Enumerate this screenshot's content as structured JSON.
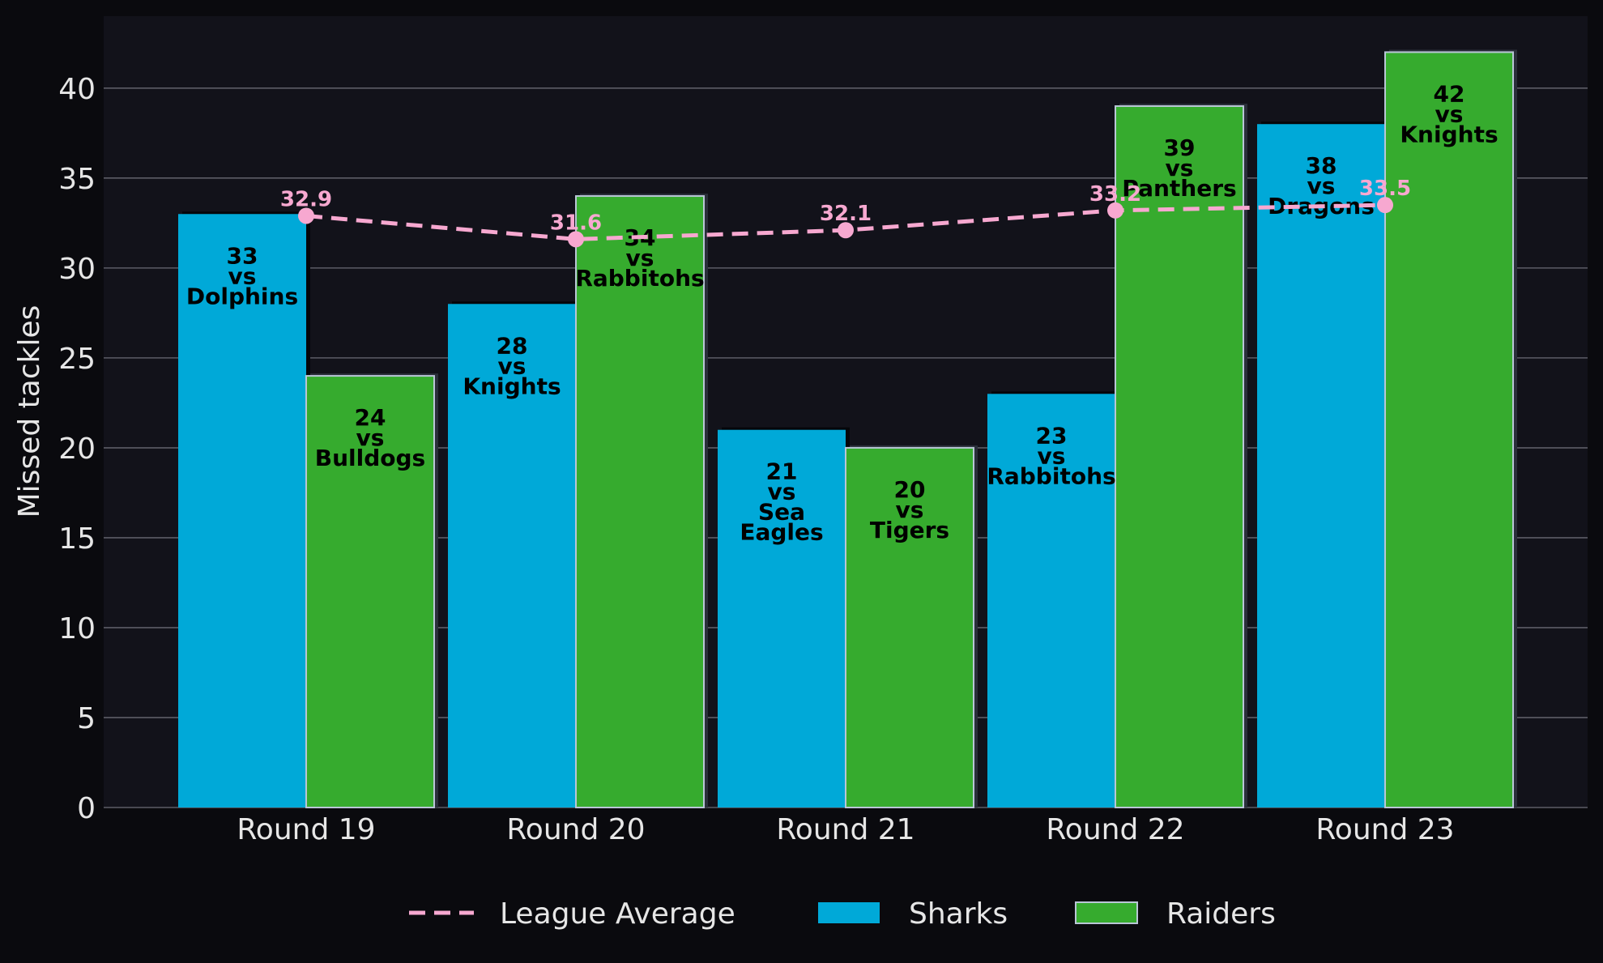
{
  "chart_data": {
    "type": "bar",
    "title": "",
    "xlabel": "",
    "ylabel": "Missed tackles",
    "ylim": [
      0,
      44
    ],
    "yticks": [
      "0",
      "5",
      "10",
      "15",
      "20",
      "25",
      "30",
      "35",
      "40"
    ],
    "categories": [
      "Round 19",
      "Round 20",
      "Round 21",
      "Round 22",
      "Round 23"
    ],
    "grid": true,
    "legend_position": "bottom-center",
    "series": [
      {
        "name": "Sharks",
        "kind": "bar",
        "color": "#00a9d8",
        "values": [
          33,
          28,
          21,
          23,
          38
        ],
        "labels": [
          "33\nvs\nDolphins",
          "28\nvs\nKnights",
          "21\nvs\nSea\nEagles",
          "23\nvs\nRabbitohs",
          "38\nvs\nDragons"
        ]
      },
      {
        "name": "Raiders",
        "kind": "bar",
        "color": "#36ab2e",
        "values": [
          24,
          34,
          20,
          39,
          42
        ],
        "labels": [
          "24\nvs\nBulldogs",
          "34\nvs\nRabbitohs",
          "20\nvs\nTigers",
          "39\nvs\nPanthers",
          "42\nvs\nKnights"
        ]
      },
      {
        "name": "League Average",
        "kind": "line",
        "style": "dashed",
        "color": "#f7a8d0",
        "values": [
          32.9,
          31.6,
          32.1,
          33.2,
          33.5
        ],
        "labels": [
          "32.9",
          "31.6",
          "32.1",
          "33.2",
          "33.5"
        ]
      }
    ]
  }
}
